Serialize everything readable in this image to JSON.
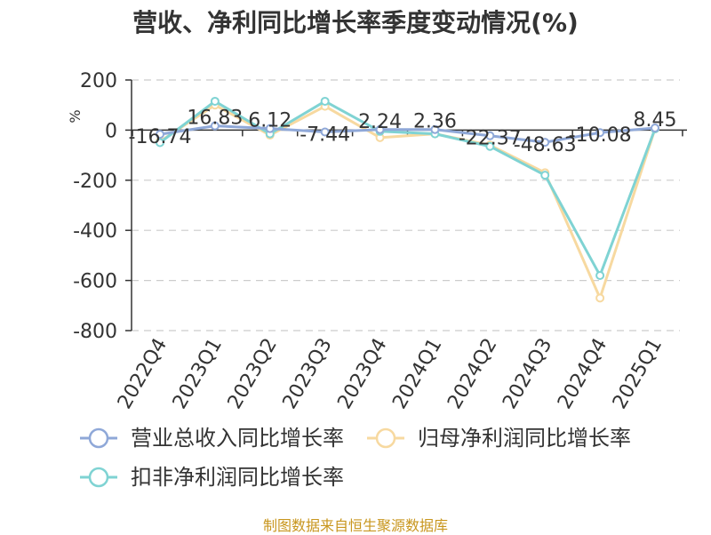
{
  "chart_data": {
    "type": "line",
    "title": "营收、净利同比增长率季度变动情况(%)",
    "ylabel": "%",
    "categories": [
      "2022Q4",
      "2023Q1",
      "2023Q2",
      "2023Q3",
      "2023Q4",
      "2024Q1",
      "2024Q2",
      "2024Q3",
      "2024Q4",
      "2025Q1"
    ],
    "ylim": [
      -800,
      200
    ],
    "yticks": [
      "200",
      "0",
      "-200",
      "-400",
      "-600",
      "-800"
    ],
    "yticks_values": [
      200,
      0,
      -200,
      -400,
      -600,
      -800
    ],
    "grid": true,
    "legend_position": "bottom",
    "series": [
      {
        "name": "营业总收入同比增长率",
        "color": "#8fa8d8",
        "values": [
          -16.74,
          16.83,
          6.12,
          -7.44,
          2.24,
          2.36,
          -22.37,
          -48.63,
          -10.08,
          8.45
        ],
        "data_labels": [
          "-16.74",
          "16.83",
          "6.12",
          "-7.44",
          "2.24",
          "2.36",
          "-22.37",
          "-48.63",
          "-10.08",
          "8.45"
        ]
      },
      {
        "name": "归母净利润同比增长率",
        "color": "#f7d9a0",
        "values": [
          -45,
          100,
          -20,
          95,
          -30,
          -15,
          -60,
          -170,
          -670,
          5
        ]
      },
      {
        "name": "扣非净利润同比增长率",
        "color": "#7fd3d3",
        "values": [
          -50,
          115,
          -15,
          115,
          -5,
          -15,
          -65,
          -180,
          -580,
          5
        ]
      }
    ]
  },
  "source_note": "制图数据来自恒生聚源数据库"
}
